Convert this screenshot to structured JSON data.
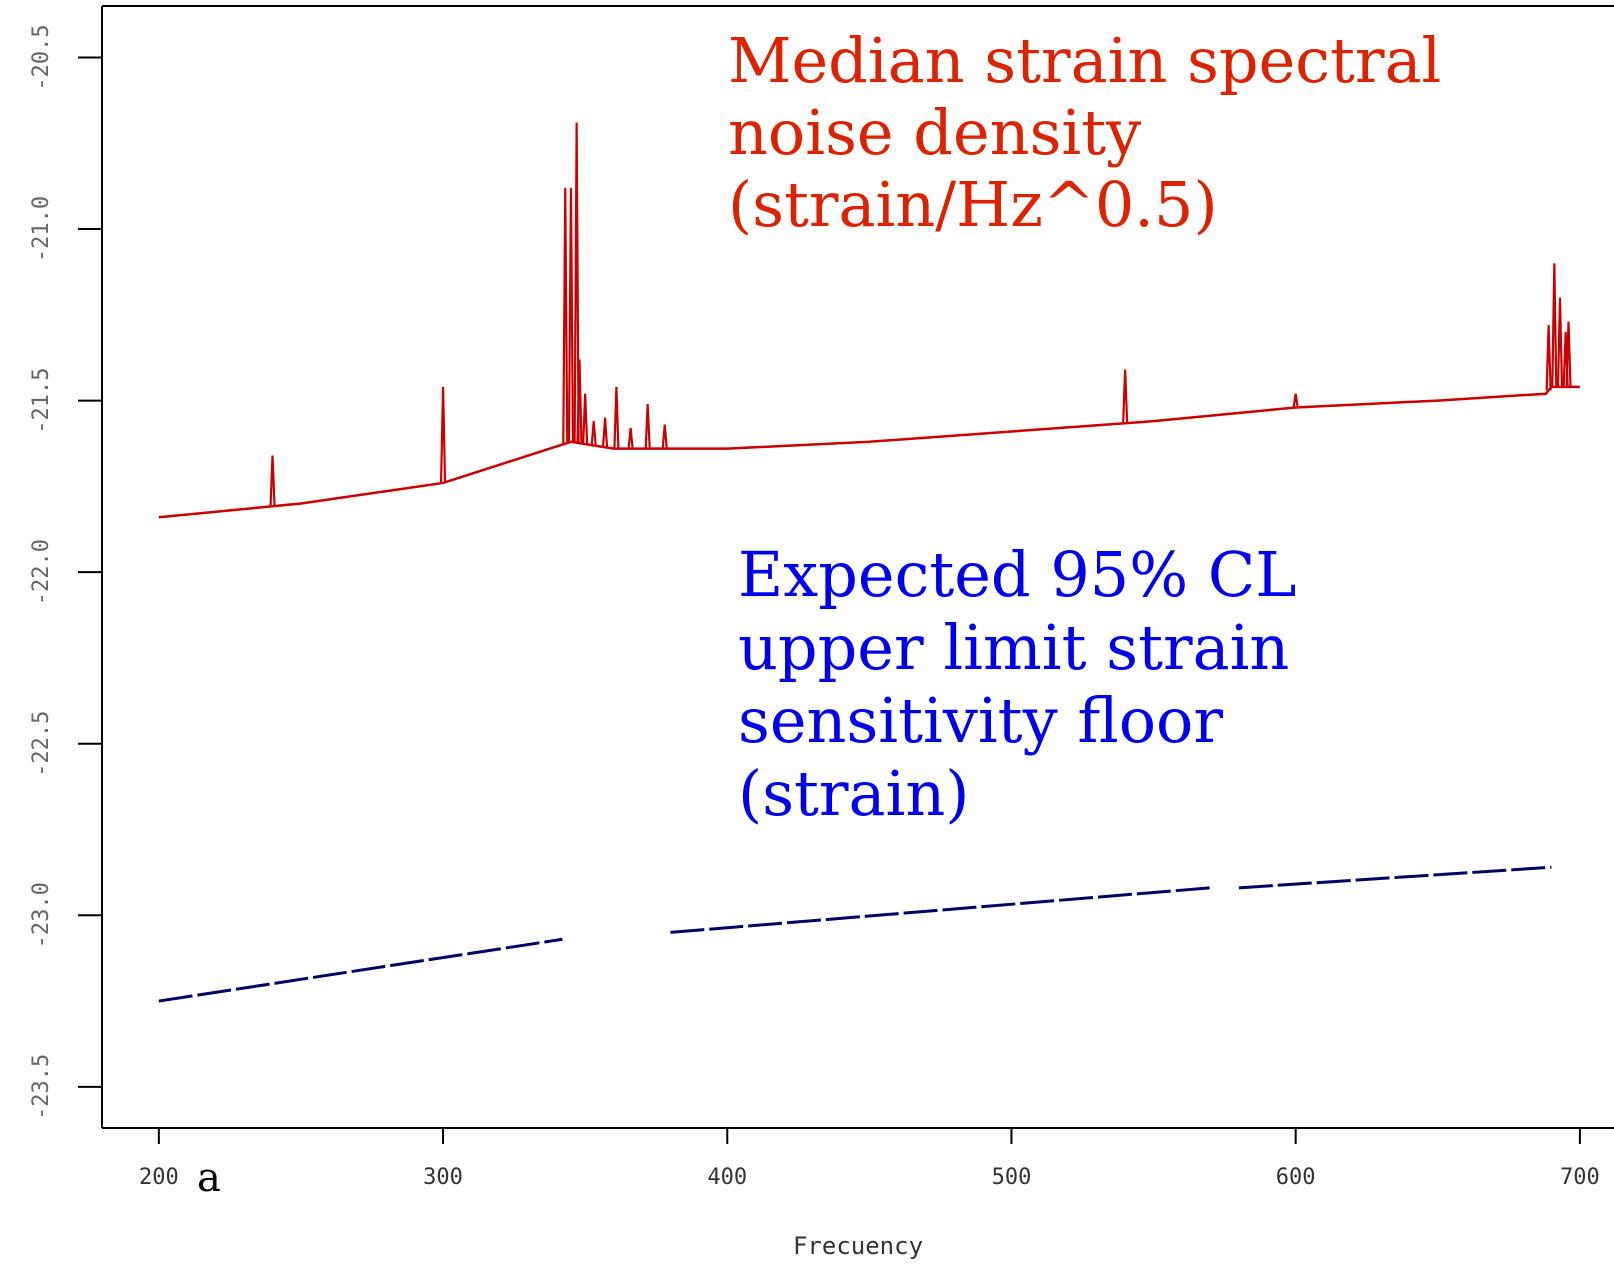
{
  "chart_data": {
    "type": "line",
    "title": "",
    "xlabel": "Frecuency",
    "ylabel": "",
    "panel_letter": "a",
    "xlim": [
      180,
      712
    ],
    "ylim": [
      -23.62,
      -20.35
    ],
    "x_ticks": [
      200,
      300,
      400,
      500,
      600,
      700
    ],
    "x_tick_labels": [
      "200",
      "300",
      "400",
      "500",
      "600",
      "700"
    ],
    "y_ticks": [
      -20.5,
      -21.0,
      -21.5,
      -22.0,
      -22.5,
      -23.0,
      -23.5
    ],
    "y_tick_labels": [
      "-20.5",
      "-21.0",
      "-21.5",
      "-22.0",
      "-22.5",
      "-23.0",
      "-23.5"
    ],
    "grid": false,
    "series": [
      {
        "color": "#cc0000",
        "baseline": [
          [
            200,
            -21.84
          ],
          [
            250,
            -21.8
          ],
          [
            300,
            -21.74
          ],
          [
            345,
            -21.62
          ],
          [
            360,
            -21.64
          ],
          [
            400,
            -21.64
          ],
          [
            450,
            -21.62
          ],
          [
            500,
            -21.59
          ],
          [
            550,
            -21.56
          ],
          [
            600,
            -21.52
          ],
          [
            650,
            -21.5
          ],
          [
            688,
            -21.48
          ],
          [
            690,
            -21.46
          ],
          [
            700,
            -21.46
          ]
        ],
        "peaks": [
          [
            240,
            -21.66
          ],
          [
            300,
            -21.46
          ],
          [
            343,
            -20.88
          ],
          [
            345,
            -20.88
          ],
          [
            347,
            -20.69
          ],
          [
            348,
            -21.38
          ],
          [
            350,
            -21.48
          ],
          [
            353,
            -21.56
          ],
          [
            357,
            -21.55
          ],
          [
            361,
            -21.46
          ],
          [
            366,
            -21.58
          ],
          [
            372,
            -21.51
          ],
          [
            378,
            -21.57
          ],
          [
            540,
            -21.41
          ],
          [
            600,
            -21.48
          ],
          [
            689,
            -21.28
          ],
          [
            691,
            -21.1
          ],
          [
            693,
            -21.2
          ],
          [
            695,
            -21.3
          ],
          [
            696,
            -21.27
          ]
        ]
      },
      {
        "color": "#000066",
        "segments": [
          [
            [
              200,
              -23.25
            ],
            [
              342,
              -23.07
            ]
          ],
          [
            [
              380,
              -23.05
            ],
            [
              570,
              -22.92
            ]
          ],
          [
            [
              580,
              -22.92
            ],
            [
              690,
              -22.86
            ]
          ]
        ]
      }
    ],
    "annotations": [
      {
        "lines": [
          "Median strain spectral",
          "noise density",
          "(strain/Hz^0.5)"
        ],
        "color": "#dd2200"
      },
      {
        "lines": [
          "Expected 95% CL",
          "upper limit strain",
          "sensitivity floor",
          "(strain)"
        ],
        "color": "#0000ee"
      }
    ]
  }
}
